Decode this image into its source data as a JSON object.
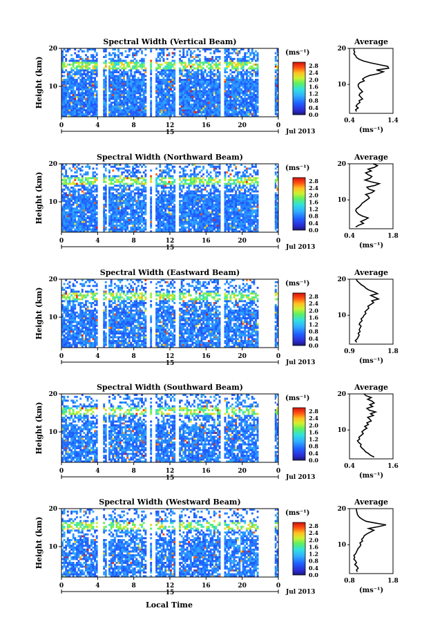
{
  "chart_data": [
    {
      "type": "heatmap",
      "title": "Spectral Width (Vertical Beam)",
      "ylabel": "Height (km)",
      "x_ticks": [
        "0",
        "4",
        "8",
        "12",
        "16",
        "20",
        "0"
      ],
      "xlim": [
        0,
        24
      ],
      "y_ticks": [
        "10",
        "20"
      ],
      "ylim": [
        2,
        20
      ],
      "date_day": "15",
      "date_month": "Jul 2013",
      "colorbar": {
        "unit": "(ms⁻¹)",
        "ticks": [
          "2.8",
          "2.4",
          "2.0",
          "1.6",
          "1.2",
          "0.8",
          "0.4",
          "0.0"
        ],
        "range": [
          0,
          3.0
        ]
      },
      "profile": {
        "title": "Average",
        "xlabel": "(ms⁻¹)",
        "x_ticks": [
          "0.4",
          "1.4"
        ],
        "xlim": [
          0.4,
          1.4
        ],
        "y_ticks": [
          "10",
          "20"
        ],
        "ylim": [
          2,
          20
        ],
        "x": [
          0.56,
          0.54,
          0.6,
          0.55,
          0.58,
          0.64,
          0.62,
          0.7,
          0.66,
          0.62,
          0.64,
          0.7,
          0.66,
          0.62,
          0.6,
          0.6,
          0.64,
          0.74,
          0.7,
          0.76,
          0.86,
          1.06,
          1.18,
          1.02,
          1.3,
          1.28,
          1.08,
          0.88,
          0.72,
          0.62,
          0.56,
          0.54,
          0.5,
          0.52,
          0.5,
          0.51
        ],
        "y": [
          2.5,
          3,
          3.5,
          4,
          4.5,
          5,
          5.5,
          6,
          6.5,
          7,
          7.5,
          8,
          8.5,
          9,
          9.5,
          10,
          10.5,
          11,
          11.5,
          12,
          12.5,
          13,
          13.5,
          14,
          14.5,
          15,
          15.5,
          16,
          16.5,
          17,
          17.5,
          18,
          18.5,
          19,
          19.5,
          20
        ]
      }
    },
    {
      "type": "heatmap",
      "title": "Spectral Width (Northward Beam)",
      "ylabel": "Height (km)",
      "x_ticks": [
        "0",
        "4",
        "8",
        "12",
        "16",
        "20",
        "0"
      ],
      "xlim": [
        0,
        24
      ],
      "y_ticks": [
        "10",
        "20"
      ],
      "ylim": [
        2,
        20
      ],
      "date_day": "15",
      "date_month": "Jul 2013",
      "colorbar": {
        "unit": "(ms⁻¹)",
        "ticks": [
          "2.8",
          "2.4",
          "2.0",
          "1.6",
          "1.2",
          "0.8",
          "0.4",
          "0.0"
        ],
        "range": [
          0,
          3.0
        ]
      },
      "profile": {
        "title": "Average",
        "xlabel": "(ms⁻¹)",
        "x_ticks": [
          "0.4",
          "1.8"
        ],
        "xlim": [
          0.4,
          1.8
        ],
        "y_ticks": [
          "10",
          "20"
        ],
        "ylim": [
          2,
          20
        ],
        "x": [
          0.6,
          0.7,
          0.85,
          0.76,
          0.9,
          1.0,
          0.82,
          0.7,
          0.64,
          0.6,
          0.62,
          0.7,
          0.76,
          0.8,
          0.88,
          0.96,
          1.04,
          1.0,
          0.92,
          1.12,
          1.2,
          1.02,
          0.96,
          1.22,
          1.36,
          1.1,
          0.9,
          1.06,
          1.12,
          1.0,
          0.92,
          1.1,
          1.0,
          1.2,
          1.3,
          1.16
        ],
        "y": [
          2.5,
          3,
          3.5,
          4,
          4.5,
          5,
          5.5,
          6,
          6.5,
          7,
          7.5,
          8,
          8.5,
          9,
          9.5,
          10,
          10.5,
          11,
          11.5,
          12,
          12.5,
          13,
          13.5,
          14,
          14.5,
          15,
          15.5,
          16,
          16.5,
          17,
          17.5,
          18,
          18.5,
          19,
          19.5,
          20
        ]
      }
    },
    {
      "type": "heatmap",
      "title": "Spectral Width (Eastward Beam)",
      "ylabel": "Height (km)",
      "x_ticks": [
        "0",
        "4",
        "8",
        "12",
        "16",
        "20",
        "0"
      ],
      "xlim": [
        0,
        24
      ],
      "y_ticks": [
        "10",
        "20"
      ],
      "ylim": [
        2,
        20
      ],
      "date_day": "15",
      "date_month": "Jul 2013",
      "colorbar": {
        "unit": "(ms⁻¹)",
        "ticks": [
          "2.8",
          "2.4",
          "2.0",
          "1.6",
          "1.2",
          "0.8",
          "0.4",
          "0.0"
        ],
        "range": [
          0,
          3.0
        ]
      },
      "profile": {
        "title": "Average",
        "xlabel": "(ms⁻¹)",
        "x_ticks": [
          "0.9",
          "1.8"
        ],
        "xlim": [
          0.9,
          1.8
        ],
        "y_ticks": [
          "10",
          "20"
        ],
        "ylim": [
          2,
          20
        ],
        "x": [
          1.05,
          1.02,
          1.06,
          1.08,
          1.1,
          1.08,
          1.12,
          1.1,
          1.12,
          1.14,
          1.1,
          1.12,
          1.16,
          1.14,
          1.18,
          1.2,
          1.24,
          1.22,
          1.26,
          1.3,
          1.28,
          1.34,
          1.4,
          1.36,
          1.5,
          1.42,
          1.34,
          1.48,
          1.4,
          1.3,
          1.24,
          1.2,
          1.14,
          1.1,
          1.06,
          1.04
        ],
        "y": [
          2.5,
          3,
          3.5,
          4,
          4.5,
          5,
          5.5,
          6,
          6.5,
          7,
          7.5,
          8,
          8.5,
          9,
          9.5,
          10,
          10.5,
          11,
          11.5,
          12,
          12.5,
          13,
          13.5,
          14,
          14.5,
          15,
          15.5,
          16,
          16.5,
          17,
          17.5,
          18,
          18.5,
          19,
          19.5,
          20
        ]
      }
    },
    {
      "type": "heatmap",
      "title": "Spectral Width (Southward Beam)",
      "ylabel": "Height (km)",
      "x_ticks": [
        "0",
        "4",
        "8",
        "12",
        "16",
        "20",
        "0"
      ],
      "xlim": [
        0,
        24
      ],
      "y_ticks": [
        "10",
        "20"
      ],
      "ylim": [
        2,
        20
      ],
      "date_day": "15",
      "date_month": "Jul 2013",
      "colorbar": {
        "unit": "(ms⁻¹)",
        "ticks": [
          "2.8",
          "2.4",
          "2.0",
          "1.6",
          "1.2",
          "0.8",
          "0.4",
          "0.0"
        ],
        "range": [
          0,
          3.0
        ]
      },
      "profile": {
        "title": "Average",
        "xlabel": "(ms⁻¹)",
        "x_ticks": [
          "0.4",
          "1.6"
        ],
        "xlim": [
          0.4,
          1.6
        ],
        "y_ticks": [
          "10",
          "20"
        ],
        "ylim": [
          2,
          20
        ],
        "x": [
          1.08,
          0.98,
          0.92,
          0.84,
          0.8,
          0.74,
          0.7,
          0.72,
          0.66,
          0.62,
          0.68,
          0.66,
          0.72,
          0.78,
          0.74,
          0.8,
          0.88,
          0.82,
          0.92,
          0.88,
          1.0,
          0.96,
          0.9,
          1.06,
          0.98,
          1.12,
          0.94,
          0.88,
          1.04,
          0.96,
          1.08,
          1.02,
          0.9,
          1.0,
          0.86,
          0.8
        ],
        "y": [
          2.5,
          3,
          3.5,
          4,
          4.5,
          5,
          5.5,
          6,
          6.5,
          7,
          7.5,
          8,
          8.5,
          9,
          9.5,
          10,
          10.5,
          11,
          11.5,
          12,
          12.5,
          13,
          13.5,
          14,
          14.5,
          15,
          15.5,
          16,
          16.5,
          17,
          17.5,
          18,
          18.5,
          19,
          19.5,
          20
        ]
      }
    },
    {
      "type": "heatmap",
      "title": "Spectral Width (Westward Beam)",
      "ylabel": "Height (km)",
      "x_ticks": [
        "0",
        "4",
        "8",
        "12",
        "16",
        "20",
        "0"
      ],
      "xlim": [
        0,
        24
      ],
      "y_ticks": [
        "10",
        "20"
      ],
      "ylim": [
        2,
        20
      ],
      "date_day": "15",
      "date_month": "Jul 2013",
      "colorbar": {
        "unit": "(ms⁻¹)",
        "ticks": [
          "2.8",
          "2.4",
          "2.0",
          "1.6",
          "1.2",
          "0.8",
          "0.4",
          "0.0"
        ],
        "range": [
          0,
          3.0
        ]
      },
      "profile": {
        "title": "Average",
        "xlabel": "(ms⁻¹)",
        "x_ticks": [
          "0.8",
          "1.8"
        ],
        "xlim": [
          0.8,
          1.8
        ],
        "y_ticks": [
          "10",
          "20"
        ],
        "ylim": [
          2,
          20
        ],
        "x": [
          0.98,
          0.96,
          1.0,
          0.97,
          0.92,
          0.96,
          0.94,
          0.9,
          0.92,
          0.9,
          0.94,
          0.96,
          0.98,
          1.0,
          1.04,
          1.06,
          1.04,
          1.1,
          1.08,
          1.12,
          1.14,
          1.2,
          1.28,
          1.36,
          1.24,
          1.46,
          1.64,
          1.4,
          1.18,
          1.1,
          1.04,
          1.0,
          0.98,
          0.97,
          0.96,
          0.96
        ],
        "y": [
          2.5,
          3,
          3.5,
          4,
          4.5,
          5,
          5.5,
          6,
          6.5,
          7,
          7.5,
          8,
          8.5,
          9,
          9.5,
          10,
          10.5,
          11,
          11.5,
          12,
          12.5,
          13,
          13.5,
          14,
          14.5,
          15,
          15.5,
          16,
          16.5,
          17,
          17.5,
          18,
          18.5,
          19,
          19.5,
          20
        ]
      }
    }
  ],
  "footer": {
    "xlabel": "Local Time"
  }
}
